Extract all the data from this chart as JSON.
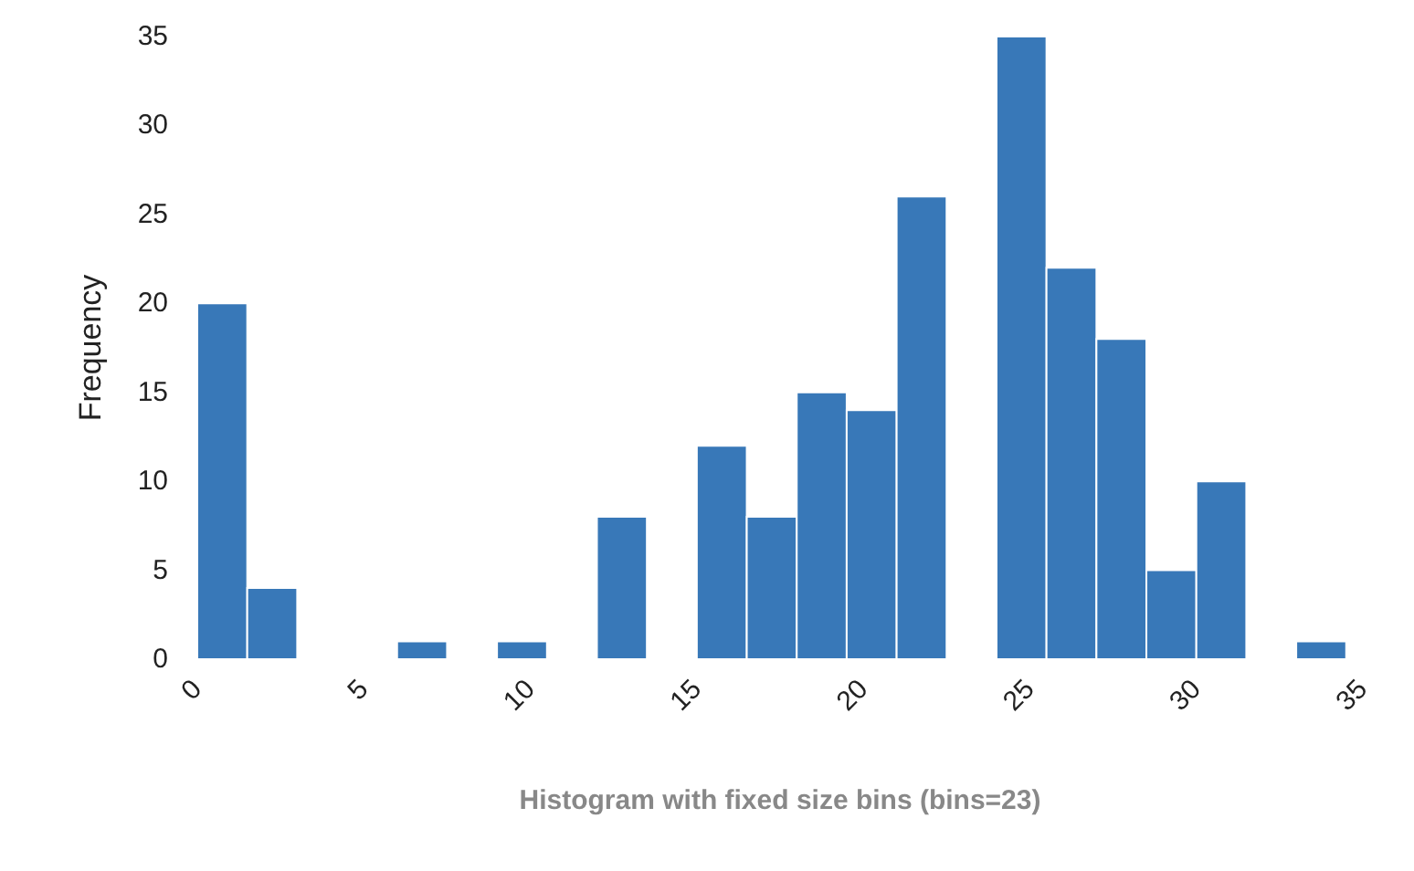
{
  "chart_data": {
    "type": "histogram",
    "xlabel": "Histogram with fixed size bins (bins=23)",
    "ylabel": "Frequency",
    "bins": [
      0,
      1.5,
      3,
      4.5,
      6,
      7.5,
      9,
      10.5,
      12,
      13.5,
      15,
      16.5,
      18,
      19.5,
      21,
      22.5,
      24,
      25.5,
      27,
      28.5,
      30,
      31.5,
      33,
      34.5
    ],
    "values": [
      20,
      4,
      0,
      0,
      1,
      0,
      1,
      0,
      8,
      0,
      12,
      8,
      15,
      14,
      26,
      0,
      35,
      22,
      18,
      5,
      10,
      0,
      1
    ],
    "color": "#3878b8",
    "xlim": [
      0,
      35
    ],
    "xticks": [
      0,
      5,
      10,
      15,
      20,
      25,
      30,
      35
    ],
    "ylim": [
      0,
      35
    ],
    "yticks": [
      0,
      5,
      10,
      15,
      20,
      25,
      30,
      35
    ],
    "grid": false
  }
}
